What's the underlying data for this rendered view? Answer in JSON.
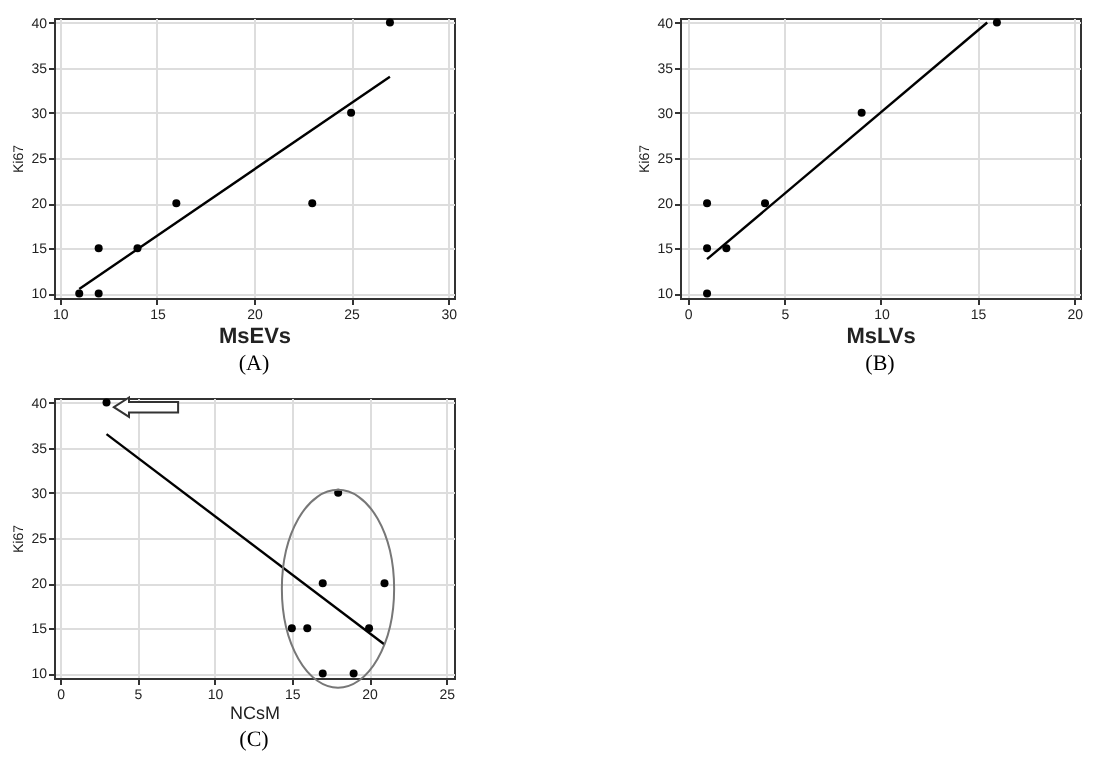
{
  "chart_data": [
    {
      "type": "scatter",
      "xlabel": "MsEVs",
      "ylabel": "Ki67",
      "xlim": [
        9.7,
        30.3
      ],
      "ylim": [
        9.5,
        40.5
      ],
      "xticks": [
        10,
        15,
        20,
        25,
        30
      ],
      "yticks": [
        10,
        15,
        20,
        25,
        30,
        35,
        40
      ],
      "grid": true,
      "marker": "circle",
      "annotations": [
        "(A)"
      ],
      "series": [
        {
          "color": "#000000",
          "x": [
            11,
            12,
            12,
            14,
            16,
            23,
            25,
            27
          ],
          "values": [
            10,
            10,
            15,
            15,
            20,
            20,
            30,
            40
          ]
        },
        {
          "type": "line",
          "marker": "none",
          "color": "#000000",
          "x": [
            11,
            27
          ],
          "values": [
            10.5,
            34
          ]
        }
      ]
    },
    {
      "type": "scatter",
      "xlabel": "MsLVs",
      "ylabel": "Ki67",
      "xlim": [
        -0.4,
        20.3
      ],
      "ylim": [
        9.5,
        40.5
      ],
      "xticks": [
        0,
        5,
        10,
        15,
        20
      ],
      "yticks": [
        10,
        15,
        20,
        25,
        30,
        35,
        40
      ],
      "grid": true,
      "marker": "circle",
      "annotations": [
        "(B)"
      ],
      "series": [
        {
          "color": "#000000",
          "x": [
            1,
            1,
            1,
            2,
            4,
            9,
            16
          ],
          "values": [
            10,
            15,
            20,
            15,
            20,
            30,
            40
          ]
        },
        {
          "type": "line",
          "marker": "none",
          "color": "#000000",
          "x": [
            1,
            15.5
          ],
          "values": [
            13.8,
            40
          ]
        }
      ]
    },
    {
      "type": "scatter",
      "xlabel": "NCsM",
      "ylabel": "Ki67",
      "xlim": [
        -0.4,
        25.5
      ],
      "ylim": [
        9.5,
        40.5
      ],
      "xticks": [
        0,
        5,
        10,
        15,
        20,
        25
      ],
      "yticks": [
        10,
        15,
        20,
        25,
        30,
        35,
        40
      ],
      "grid": true,
      "marker": "circle",
      "annotations": [
        "(C)"
      ],
      "series": [
        {
          "color": "#000000",
          "x": [
            3,
            15,
            16,
            17,
            17,
            18,
            19,
            20,
            21
          ],
          "values": [
            40,
            15,
            15,
            20,
            10,
            30,
            10,
            15,
            20
          ]
        },
        {
          "type": "line",
          "marker": "none",
          "color": "#000000",
          "x": [
            3,
            21
          ],
          "values": [
            36.5,
            13.2
          ]
        }
      ]
    }
  ]
}
